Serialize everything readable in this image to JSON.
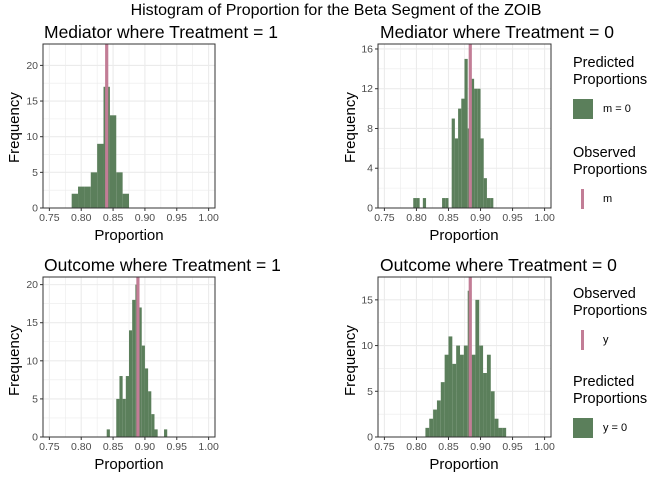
{
  "figure": {
    "title": "Histogram of Proportion for the Beta Segment of the ZOIB",
    "colors": {
      "bar": "#5b7f5b",
      "line": "#c27d96",
      "grid": "#ebebeb",
      "panel_border": "#333333"
    }
  },
  "legends": {
    "top": [
      {
        "title": "Predicted\n Proportions",
        "kind": "fill",
        "label": "m = 0"
      },
      {
        "title": "Observed\n Proportions",
        "kind": "line",
        "label": "m"
      }
    ],
    "bottom": [
      {
        "title": "Observed\n Proportions",
        "kind": "line",
        "label": "y"
      },
      {
        "title": "Predicted\n Proportions",
        "kind": "fill",
        "label": "y = 0"
      }
    ]
  },
  "chart_data": [
    {
      "type": "bar",
      "title": "Mediator where Treatment = 1",
      "xlabel": "Proportion",
      "ylabel": "Frequency",
      "xlim": [
        0.74,
        1.01
      ],
      "ylim": [
        0,
        23
      ],
      "xticks": [
        "0.75",
        "0.80",
        "0.85",
        "0.90",
        "0.95",
        "1.00"
      ],
      "yticks": [
        "0",
        "5",
        "10",
        "15",
        "20"
      ],
      "bin_width": 0.01,
      "bins": [
        0.79,
        0.8,
        0.81,
        0.82,
        0.83,
        0.84,
        0.85,
        0.86,
        0.87
      ],
      "values": [
        2,
        3,
        3,
        5,
        9,
        17,
        13,
        5,
        2
      ],
      "observed": 0.84
    },
    {
      "type": "bar",
      "title": "Mediator where Treatment = 0",
      "xlabel": "Proportion",
      "ylabel": "Frequency",
      "xlim": [
        0.74,
        1.01
      ],
      "ylim": [
        0,
        16.5
      ],
      "xticks": [
        "0.75",
        "0.80",
        "0.85",
        "0.90",
        "0.95",
        "1.00"
      ],
      "yticks": [
        "0",
        "4",
        "8",
        "12",
        "16"
      ],
      "bin_width": 0.005,
      "bins": [
        0.7975,
        0.8025,
        0.8125,
        0.8425,
        0.8475,
        0.8575,
        0.8625,
        0.8675,
        0.8725,
        0.8775,
        0.8825,
        0.8875,
        0.8925,
        0.8975,
        0.9025,
        0.9075,
        0.9125,
        0.9175
      ],
      "values": [
        1,
        1,
        1,
        1,
        1,
        9,
        7,
        10,
        11,
        15,
        8,
        13,
        12,
        12,
        7,
        3,
        1,
        1
      ],
      "observed": 0.884
    },
    {
      "type": "bar",
      "title": "Outcome where Treatment = 1",
      "xlabel": "Proportion",
      "ylabel": "Frequency",
      "xlim": [
        0.74,
        1.01
      ],
      "ylim": [
        0,
        21
      ],
      "xticks": [
        "0.75",
        "0.80",
        "0.85",
        "0.90",
        "0.95",
        "1.00"
      ],
      "yticks": [
        "0",
        "5",
        "10",
        "15",
        "20"
      ],
      "bin_width": 0.005,
      "bins": [
        0.8425,
        0.8575,
        0.8625,
        0.8675,
        0.8725,
        0.8775,
        0.8825,
        0.8875,
        0.8925,
        0.8975,
        0.9025,
        0.9075,
        0.9125,
        0.9175,
        0.9325
      ],
      "values": [
        1,
        5,
        8,
        5,
        8,
        14,
        18,
        20,
        17,
        12,
        9,
        6,
        3,
        1,
        1
      ],
      "observed": 0.889
    },
    {
      "type": "bar",
      "title": "Outcome where Treatment = 0",
      "xlabel": "Proportion",
      "ylabel": "Frequency",
      "xlim": [
        0.74,
        1.01
      ],
      "ylim": [
        0,
        17.5
      ],
      "xticks": [
        "0.75",
        "0.80",
        "0.85",
        "0.90",
        "0.95",
        "1.00"
      ],
      "yticks": [
        "0",
        "5",
        "10",
        "15"
      ],
      "bin_width": 0.006,
      "bins": [
        0.817,
        0.823,
        0.829,
        0.835,
        0.841,
        0.847,
        0.853,
        0.859,
        0.865,
        0.871,
        0.877,
        0.883,
        0.889,
        0.895,
        0.901,
        0.907,
        0.913,
        0.919,
        0.925,
        0.931,
        0.937
      ],
      "values": [
        1,
        2,
        3,
        4,
        6,
        9,
        11,
        8,
        10,
        9,
        10,
        16,
        9,
        15,
        10,
        7,
        9,
        5,
        2,
        1,
        1
      ],
      "observed": 0.884
    }
  ]
}
